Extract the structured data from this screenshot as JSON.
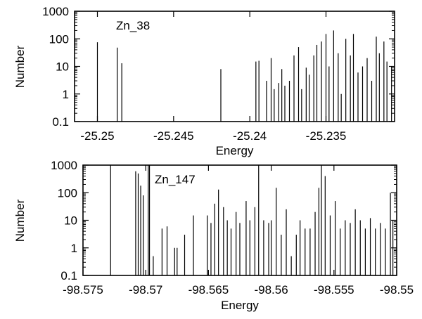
{
  "chart_data": [
    {
      "type": "bar",
      "panel_label": "Zn_38",
      "xlabel": "Energy",
      "ylabel": "Number",
      "xlim": [
        -25.2515,
        -25.2305
      ],
      "ylim": [
        0.1,
        1000
      ],
      "yscale": "log",
      "xticks": [
        -25.25,
        -25.245,
        -25.24,
        -25.235
      ],
      "xtick_labels": [
        "-25.25",
        "-25.245",
        "-25.24",
        "-25.235"
      ],
      "yticks": [
        0.1,
        1,
        10,
        100,
        1000
      ],
      "ytick_labels": [
        "0.1",
        "1",
        "10",
        "100",
        "1000"
      ],
      "grid": false,
      "x": [
        -25.25,
        -25.2487,
        -25.2484,
        -25.2419,
        -25.2396,
        -25.2394,
        -25.2389,
        -25.2386,
        -25.2384,
        -25.2381,
        -25.2379,
        -25.2377,
        -25.2374,
        -25.2371,
        -25.2368,
        -25.2366,
        -25.2363,
        -25.2361,
        -25.2358,
        -25.2356,
        -25.2353,
        -25.235,
        -25.2348,
        -25.2345,
        -25.2342,
        -25.234,
        -25.2337,
        -25.2334,
        -25.2332,
        -25.2329,
        -25.2326,
        -25.2323,
        -25.232,
        -25.2317,
        -25.2315,
        -25.2312,
        -25.231,
        -25.2307
      ],
      "values": [
        75,
        48,
        13,
        8,
        15,
        16,
        3,
        20,
        1.5,
        2.5,
        8,
        2,
        3,
        25,
        50,
        1.5,
        9,
        5,
        25,
        60,
        80,
        150,
        10,
        200,
        30,
        1,
        100,
        25,
        150,
        6,
        10,
        20,
        3,
        120,
        30,
        80,
        15,
        10
      ]
    },
    {
      "type": "bar",
      "panel_label": "Zn_147",
      "xlabel": "Energy",
      "ylabel": "Number",
      "xlim": [
        -98.575,
        -98.55
      ],
      "ylim": [
        0.1,
        1000
      ],
      "yscale": "log",
      "xticks": [
        -98.575,
        -98.57,
        -98.565,
        -98.56,
        -98.555,
        -98.55
      ],
      "xtick_labels": [
        "-98.575",
        "-98.57",
        "-98.565",
        "-98.56",
        "-98.555",
        "-98.55"
      ],
      "yticks": [
        0.1,
        1,
        10,
        100,
        1000
      ],
      "ytick_labels": [
        "0.1",
        "1",
        "10",
        "100",
        "1000"
      ],
      "grid": false,
      "x": [
        -98.5728,
        -98.5708,
        -98.5706,
        -98.5704,
        -98.5702,
        -98.5698,
        -98.5697,
        -98.5694,
        -98.5687,
        -98.5683,
        -98.5677,
        -98.5675,
        -98.5669,
        -98.5662,
        -98.5651,
        -98.5648,
        -98.5645,
        -98.5642,
        -98.5638,
        -98.5635,
        -98.5632,
        -98.5628,
        -98.5625,
        -98.562,
        -98.5617,
        -98.5613,
        -98.561,
        -98.5606,
        -98.5602,
        -98.56,
        -98.5596,
        -98.5592,
        -98.5588,
        -98.5584,
        -98.558,
        -98.5577,
        -98.5573,
        -98.5569,
        -98.5565,
        -98.5562,
        -98.556,
        -98.5557,
        -98.5553,
        -98.5549,
        -98.5545,
        -98.5541,
        -98.5537,
        -98.5533,
        -98.5529,
        -98.5525,
        -98.5521,
        -98.5517,
        -98.5513,
        -98.5509,
        -98.5505,
        -98.5503
      ],
      "values": [
        1000,
        600,
        500,
        180,
        80,
        1000,
        1000,
        0.5,
        5,
        6,
        1,
        1,
        3,
        15,
        15,
        8,
        40,
        130,
        30,
        10,
        5,
        20,
        8,
        50,
        10,
        30,
        1000,
        10,
        8,
        10,
        150,
        3,
        25,
        0.5,
        3,
        10,
        5,
        5,
        20,
        150,
        1000,
        400,
        15,
        50,
        5,
        10,
        8,
        25,
        10,
        5,
        12,
        5,
        8,
        5,
        100,
        10
      ]
    }
  ]
}
